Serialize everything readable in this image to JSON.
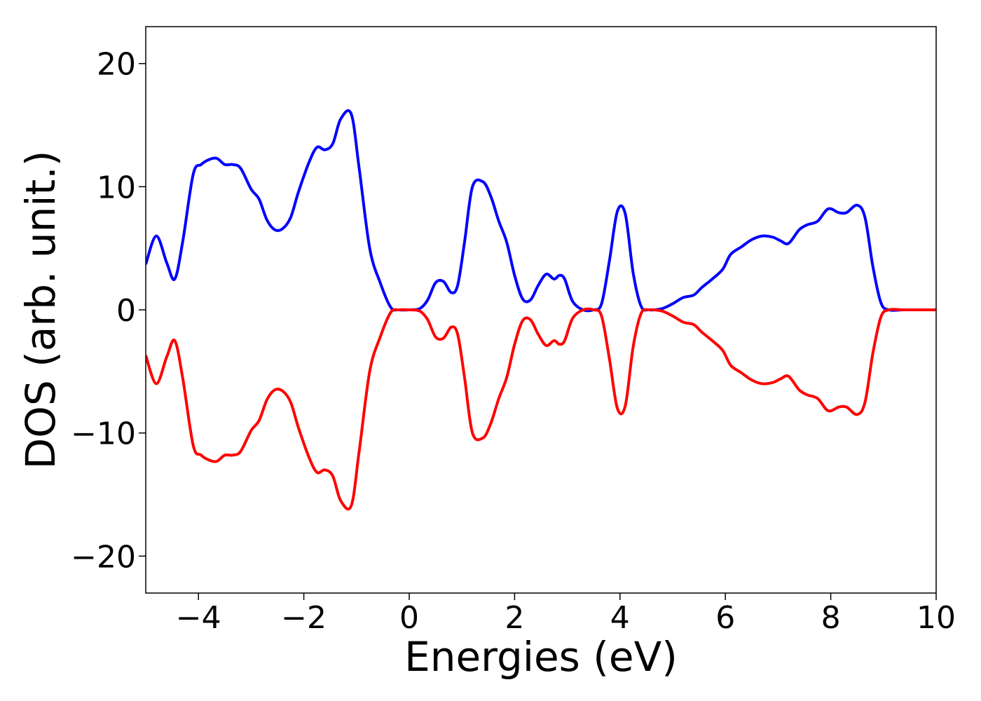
{
  "chart_data": {
    "type": "line",
    "title": "",
    "xlabel": "Energies (eV)",
    "ylabel": "DOS (arb. unit.)",
    "xlim": [
      -5,
      10
    ],
    "ylim": [
      -23,
      23
    ],
    "grid": false,
    "xticks": [
      {
        "value": -4,
        "label": "−4"
      },
      {
        "value": -2,
        "label": "−2"
      },
      {
        "value": 0,
        "label": "0"
      },
      {
        "value": 2,
        "label": "2"
      },
      {
        "value": 4,
        "label": "4"
      },
      {
        "value": 6,
        "label": "6"
      },
      {
        "value": 8,
        "label": "8"
      },
      {
        "value": 10,
        "label": "10"
      }
    ],
    "yticks": [
      {
        "value": -20,
        "label": "−20"
      },
      {
        "value": -10,
        "label": "−10"
      },
      {
        "value": 0,
        "label": "0"
      },
      {
        "value": 10,
        "label": "10"
      },
      {
        "value": 20,
        "label": "20"
      }
    ],
    "series": [
      {
        "color": "#0000ff",
        "x": [
          -5.0,
          -4.8,
          -4.6,
          -4.45,
          -4.3,
          -4.1,
          -3.95,
          -3.8,
          -3.65,
          -3.5,
          -3.35,
          -3.2,
          -3.0,
          -2.85,
          -2.7,
          -2.55,
          -2.4,
          -2.25,
          -2.1,
          -1.9,
          -1.75,
          -1.6,
          -1.45,
          -1.3,
          -1.1,
          -0.95,
          -0.75,
          -0.55,
          -0.35,
          -0.2,
          0.0,
          0.2,
          0.35,
          0.5,
          0.65,
          0.8,
          0.92,
          1.05,
          1.2,
          1.4,
          1.55,
          1.7,
          1.85,
          2.0,
          2.15,
          2.3,
          2.45,
          2.6,
          2.75,
          2.85,
          2.95,
          3.1,
          3.3,
          3.5,
          3.65,
          3.8,
          3.95,
          4.1,
          4.25,
          4.4,
          4.55,
          4.8,
          5.0,
          5.2,
          5.4,
          5.55,
          5.75,
          5.95,
          6.1,
          6.3,
          6.5,
          6.7,
          6.9,
          7.05,
          7.2,
          7.4,
          7.55,
          7.75,
          7.95,
          8.15,
          8.3,
          8.5,
          8.65,
          8.8,
          8.95,
          9.1,
          9.4,
          10.0
        ],
        "y": [
          3.7,
          6.0,
          3.8,
          2.5,
          5.5,
          11.0,
          11.8,
          12.2,
          12.3,
          11.8,
          11.8,
          11.5,
          9.8,
          9.0,
          7.3,
          6.5,
          6.6,
          7.5,
          9.6,
          12.0,
          13.2,
          13.0,
          13.5,
          15.5,
          15.9,
          11.5,
          5.0,
          2.2,
          0.2,
          0.0,
          0.0,
          0.1,
          0.8,
          2.2,
          2.3,
          1.4,
          2.0,
          5.5,
          10.0,
          10.4,
          9.2,
          7.2,
          5.5,
          2.8,
          0.9,
          0.8,
          2.0,
          2.9,
          2.5,
          2.8,
          2.5,
          0.7,
          0.0,
          0.0,
          0.5,
          4.0,
          8.0,
          7.8,
          3.0,
          0.3,
          0.0,
          0.1,
          0.5,
          1.0,
          1.2,
          1.8,
          2.5,
          3.3,
          4.5,
          5.1,
          5.7,
          6.0,
          5.9,
          5.6,
          5.4,
          6.5,
          6.9,
          7.2,
          8.2,
          7.9,
          7.9,
          8.5,
          7.5,
          3.5,
          0.6,
          0.0,
          0.0,
          0.0
        ]
      },
      {
        "color": "#ff0000",
        "x": [
          -5.0,
          -4.8,
          -4.6,
          -4.45,
          -4.3,
          -4.1,
          -3.95,
          -3.8,
          -3.65,
          -3.5,
          -3.35,
          -3.2,
          -3.0,
          -2.85,
          -2.7,
          -2.55,
          -2.4,
          -2.25,
          -2.1,
          -1.9,
          -1.75,
          -1.6,
          -1.45,
          -1.3,
          -1.1,
          -0.95,
          -0.75,
          -0.55,
          -0.35,
          -0.2,
          0.0,
          0.2,
          0.35,
          0.5,
          0.65,
          0.8,
          0.92,
          1.05,
          1.2,
          1.4,
          1.55,
          1.7,
          1.85,
          2.0,
          2.15,
          2.3,
          2.45,
          2.6,
          2.75,
          2.85,
          2.95,
          3.1,
          3.3,
          3.5,
          3.65,
          3.8,
          3.95,
          4.1,
          4.25,
          4.4,
          4.55,
          4.8,
          5.0,
          5.2,
          5.4,
          5.55,
          5.75,
          5.95,
          6.1,
          6.3,
          6.5,
          6.7,
          6.9,
          7.05,
          7.2,
          7.4,
          7.55,
          7.75,
          7.95,
          8.15,
          8.3,
          8.5,
          8.65,
          8.8,
          8.95,
          9.1,
          9.4,
          10.0
        ],
        "y": [
          -3.7,
          -6.0,
          -3.8,
          -2.5,
          -5.5,
          -11.0,
          -11.8,
          -12.2,
          -12.3,
          -11.8,
          -11.8,
          -11.5,
          -9.8,
          -9.0,
          -7.3,
          -6.5,
          -6.6,
          -7.5,
          -9.6,
          -12.0,
          -13.2,
          -13.0,
          -13.5,
          -15.5,
          -15.9,
          -11.5,
          -5.0,
          -2.2,
          -0.2,
          0.0,
          0.0,
          -0.1,
          -0.8,
          -2.2,
          -2.3,
          -1.4,
          -2.0,
          -5.5,
          -10.0,
          -10.4,
          -9.2,
          -7.2,
          -5.5,
          -2.8,
          -0.9,
          -0.8,
          -2.0,
          -2.9,
          -2.5,
          -2.8,
          -2.5,
          -0.7,
          0.0,
          0.0,
          -0.5,
          -4.0,
          -8.0,
          -7.8,
          -3.0,
          -0.3,
          0.0,
          -0.1,
          -0.5,
          -1.0,
          -1.2,
          -1.8,
          -2.5,
          -3.3,
          -4.5,
          -5.1,
          -5.7,
          -6.0,
          -5.9,
          -5.6,
          -5.4,
          -6.5,
          -6.9,
          -7.2,
          -8.2,
          -7.9,
          -7.9,
          -8.5,
          -7.5,
          -3.5,
          -0.6,
          0.0,
          0.0,
          0.0
        ]
      }
    ]
  }
}
